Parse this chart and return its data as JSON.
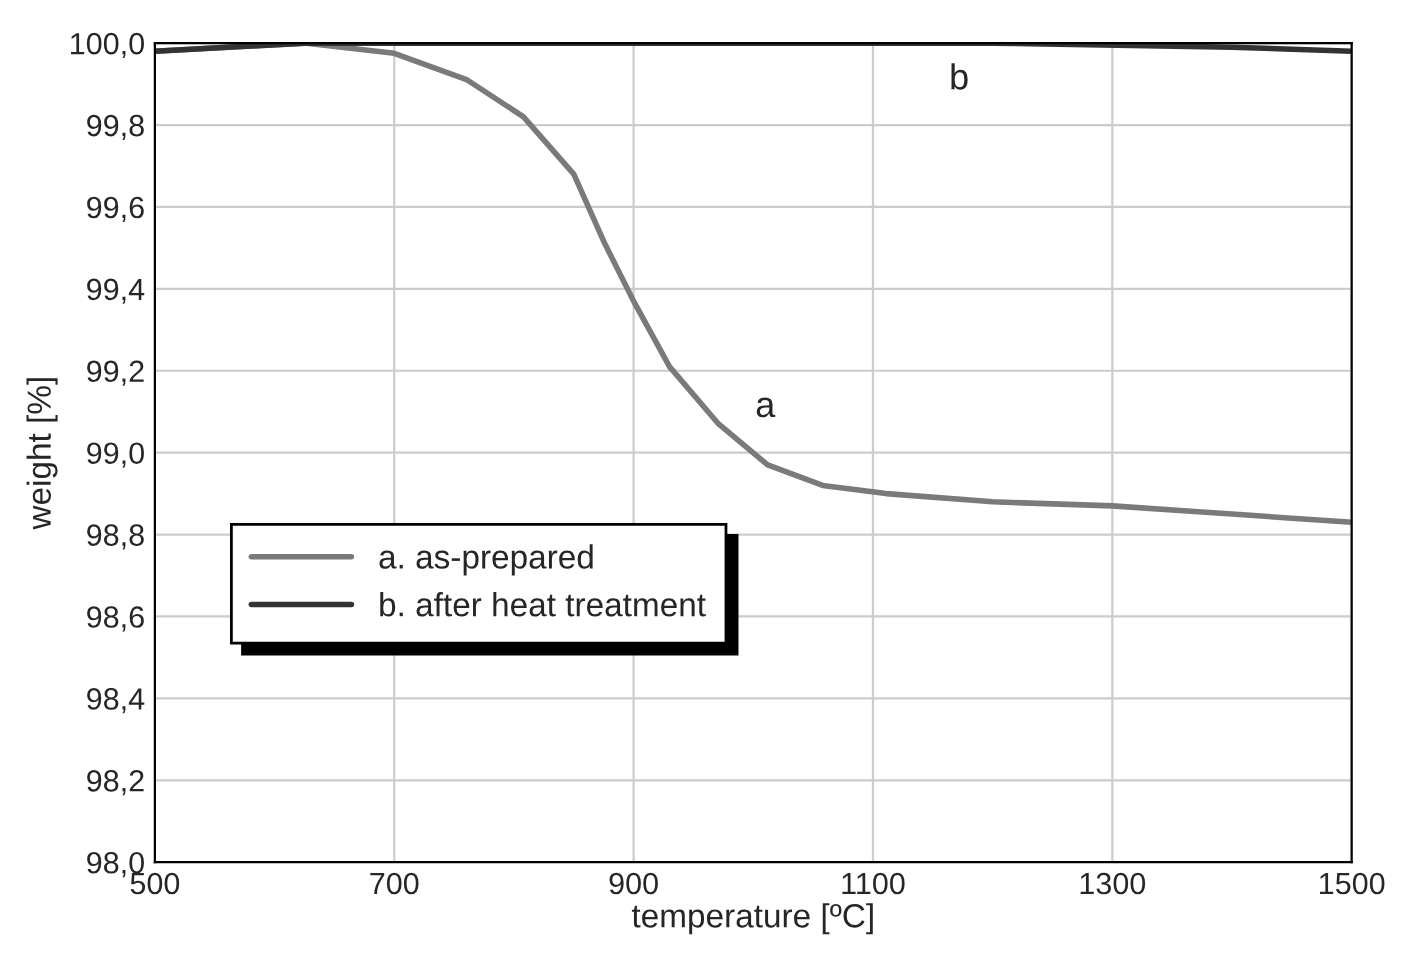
{
  "chart_data": {
    "type": "line",
    "xlabel": "temperature [ºC]",
    "ylabel": "weight [%]",
    "series": [
      {
        "name": "a. as-prepared",
        "color": "#7a7a7a",
        "x": [
          500,
          560,
          625,
          700,
          761,
          808,
          850,
          876,
          900,
          930,
          971,
          1012,
          1058,
          1111,
          1200,
          1300,
          1400,
          1450,
          1500
        ],
        "values": [
          99.98,
          99.99,
          100.0,
          99.975,
          99.91,
          99.82,
          99.68,
          99.51,
          99.37,
          99.21,
          99.07,
          98.97,
          98.92,
          98.9,
          98.88,
          98.87,
          98.85,
          98.84,
          98.83
        ]
      },
      {
        "name": "b. after heat treatment",
        "color": "#333333",
        "x": [
          500,
          625,
          800,
          1000,
          1200,
          1400,
          1500
        ],
        "values": [
          99.98,
          100.0,
          100.0,
          100.0,
          100.0,
          99.99,
          99.98
        ]
      }
    ],
    "annotations": [
      "a",
      "b"
    ],
    "xlim": [
      500,
      1500
    ],
    "xticks": [
      500,
      700,
      900,
      1100,
      1300,
      1500
    ],
    "ylim": [
      98.0,
      100.0
    ],
    "yticks": [
      {
        "value": 98.0,
        "label": "98,0"
      },
      {
        "value": 98.2,
        "label": "98,2"
      },
      {
        "value": 98.4,
        "label": "98,4"
      },
      {
        "value": 98.6,
        "label": "98,6"
      },
      {
        "value": 98.8,
        "label": "98,8"
      },
      {
        "value": 99.0,
        "label": "99,0"
      },
      {
        "value": 99.2,
        "label": "99,2"
      },
      {
        "value": 99.4,
        "label": "99,4"
      },
      {
        "value": 99.6,
        "label": "99,6"
      },
      {
        "value": 99.8,
        "label": "99,8"
      },
      {
        "value": 100.0,
        "label": "100,0"
      }
    ],
    "grid": true,
    "legend": "left",
    "line_style": "solid",
    "marker": "none"
  }
}
